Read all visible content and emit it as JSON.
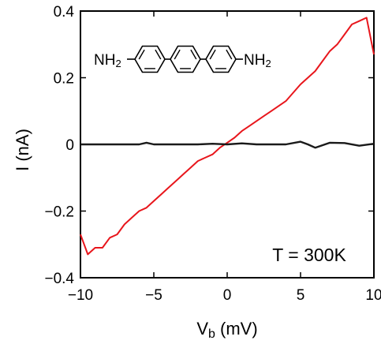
{
  "chart_data": {
    "type": "line",
    "xlabel_main": "V",
    "xlabel_sub": "b",
    "xlabel_unit": " (mV)",
    "ylabel": "I (nA)",
    "xlim": [
      -10,
      10
    ],
    "ylim": [
      -0.4,
      0.4
    ],
    "x_ticks": [
      -10,
      -5,
      0,
      5,
      10
    ],
    "x_tick_labels": [
      "−10",
      "−5",
      "0",
      "5",
      "10"
    ],
    "y_ticks": [
      -0.4,
      -0.2,
      0,
      0.2,
      0.4
    ],
    "y_tick_labels": [
      "−0.4",
      "−0.2",
      "0",
      "0.2",
      "0.4"
    ],
    "grid": false,
    "annotation": "T = 300K",
    "molecule": {
      "left_group": "NH",
      "left_sub": "2",
      "right_group": "NH",
      "right_sub": "2",
      "rings": 3
    },
    "series": [
      {
        "color": "#e8161c",
        "x": [
          -10,
          -9.5,
          -9,
          -8.5,
          -8,
          -7.5,
          -7,
          -6.5,
          -6,
          -5.5,
          -5,
          -4.5,
          -4,
          -3.5,
          -3,
          -2.5,
          -2,
          -1.5,
          -1,
          -0.5,
          0,
          0.5,
          1,
          1.5,
          2,
          2.5,
          3,
          3.5,
          4,
          4.5,
          5,
          5.5,
          6,
          6.5,
          7,
          7.5,
          8,
          8.5,
          9,
          9.5,
          10
        ],
        "y": [
          -0.27,
          -0.33,
          -0.31,
          -0.31,
          -0.28,
          -0.27,
          -0.24,
          -0.22,
          -0.2,
          -0.19,
          -0.17,
          -0.15,
          -0.13,
          -0.11,
          -0.09,
          -0.07,
          -0.05,
          -0.04,
          -0.03,
          -0.01,
          0.005,
          0.02,
          0.04,
          0.055,
          0.07,
          0.085,
          0.1,
          0.115,
          0.13,
          0.155,
          0.18,
          0.2,
          0.22,
          0.25,
          0.28,
          0.3,
          0.33,
          0.36,
          0.37,
          0.38,
          0.27
        ]
      },
      {
        "color": "#1a1a1a",
        "x": [
          -10,
          -9,
          -8,
          -7,
          -6,
          -5.5,
          -5,
          -4,
          -3,
          -2,
          -1,
          0,
          1,
          2,
          3,
          4,
          5,
          5.5,
          6,
          7,
          8,
          9,
          10
        ],
        "y": [
          0,
          0,
          0,
          0,
          0,
          0.005,
          0,
          0,
          0,
          0,
          0.002,
          0,
          0.003,
          0,
          0,
          0,
          0.008,
          0,
          -0.01,
          0.005,
          0.004,
          -0.004,
          0.002
        ]
      }
    ]
  }
}
